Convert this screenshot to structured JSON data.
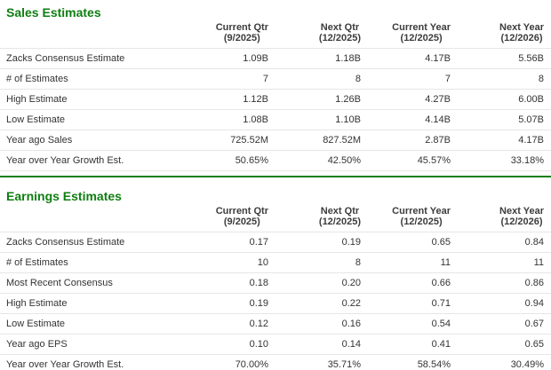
{
  "colors": {
    "accent_green": "#0e7e10",
    "row_border": "#e6e6e6",
    "text": "#333333"
  },
  "columns": [
    {
      "label": "Current Qtr",
      "sublabel": "(9/2025)"
    },
    {
      "label": "Next Qtr",
      "sublabel": "(12/2025)"
    },
    {
      "label": "Current Year",
      "sublabel": "(12/2025)"
    },
    {
      "label": "Next Year",
      "sublabel": "(12/2026)"
    }
  ],
  "sales": {
    "title": "Sales Estimates",
    "rows": [
      {
        "label": "Zacks Consensus Estimate",
        "values": [
          "1.09B",
          "1.18B",
          "4.17B",
          "5.56B"
        ]
      },
      {
        "label": "# of Estimates",
        "values": [
          "7",
          "8",
          "7",
          "8"
        ]
      },
      {
        "label": "High Estimate",
        "values": [
          "1.12B",
          "1.26B",
          "4.27B",
          "6.00B"
        ]
      },
      {
        "label": "Low Estimate",
        "values": [
          "1.08B",
          "1.10B",
          "4.14B",
          "5.07B"
        ]
      },
      {
        "label": "Year ago Sales",
        "values": [
          "725.52M",
          "827.52M",
          "2.87B",
          "4.17B"
        ]
      },
      {
        "label": "Year over Year Growth Est.",
        "values": [
          "50.65%",
          "42.50%",
          "45.57%",
          "33.18%"
        ]
      }
    ]
  },
  "earnings": {
    "title": "Earnings Estimates",
    "rows": [
      {
        "label": "Zacks Consensus Estimate",
        "values": [
          "0.17",
          "0.19",
          "0.65",
          "0.84"
        ]
      },
      {
        "label": "# of Estimates",
        "values": [
          "10",
          "8",
          "11",
          "11"
        ]
      },
      {
        "label": "Most Recent Consensus",
        "values": [
          "0.18",
          "0.20",
          "0.66",
          "0.86"
        ]
      },
      {
        "label": "High Estimate",
        "values": [
          "0.19",
          "0.22",
          "0.71",
          "0.94"
        ]
      },
      {
        "label": "Low Estimate",
        "values": [
          "0.12",
          "0.16",
          "0.54",
          "0.67"
        ]
      },
      {
        "label": "Year ago EPS",
        "values": [
          "0.10",
          "0.14",
          "0.41",
          "0.65"
        ]
      },
      {
        "label": "Year over Year Growth Est.",
        "values": [
          "70.00%",
          "35.71%",
          "58.54%",
          "30.49%"
        ]
      }
    ]
  }
}
